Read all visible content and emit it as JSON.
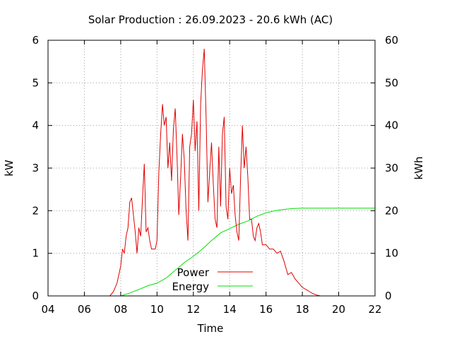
{
  "chart_data": {
    "type": "line",
    "title": "Solar Production : 26.09.2023 - 20.6 kWh (AC)",
    "xlabel": "Time",
    "ylabel": "kW",
    "y2label": "kWh",
    "xlim": [
      4,
      22
    ],
    "ylim": [
      0,
      6
    ],
    "y2lim": [
      0,
      60
    ],
    "x_ticks": [
      "04",
      "06",
      "08",
      "10",
      "12",
      "14",
      "16",
      "18",
      "20",
      "22"
    ],
    "y_ticks": [
      "0",
      "1",
      "2",
      "3",
      "4",
      "5",
      "6"
    ],
    "y2_ticks": [
      "0",
      "10",
      "20",
      "30",
      "40",
      "50",
      "60"
    ],
    "grid": true,
    "legend_position": "bottom-center",
    "colors": {
      "power": "#e00000",
      "energy": "#00e000"
    },
    "series": [
      {
        "name": "Power",
        "axis": "left",
        "x": [
          7.4,
          7.6,
          7.8,
          8.0,
          8.1,
          8.2,
          8.3,
          8.4,
          8.5,
          8.6,
          8.7,
          8.8,
          8.9,
          9.0,
          9.1,
          9.2,
          9.3,
          9.4,
          9.5,
          9.6,
          9.7,
          9.8,
          9.9,
          10.0,
          10.1,
          10.2,
          10.3,
          10.4,
          10.5,
          10.6,
          10.7,
          10.8,
          10.9,
          11.0,
          11.1,
          11.2,
          11.3,
          11.4,
          11.5,
          11.6,
          11.7,
          11.8,
          11.9,
          12.0,
          12.1,
          12.2,
          12.3,
          12.4,
          12.5,
          12.6,
          12.7,
          12.8,
          12.9,
          13.0,
          13.1,
          13.2,
          13.3,
          13.4,
          13.5,
          13.6,
          13.7,
          13.8,
          13.9,
          14.0,
          14.1,
          14.2,
          14.3,
          14.4,
          14.5,
          14.6,
          14.7,
          14.8,
          14.9,
          15.0,
          15.1,
          15.2,
          15.3,
          15.4,
          15.5,
          15.6,
          15.7,
          15.8,
          15.9,
          16.0,
          16.2,
          16.4,
          16.6,
          16.8,
          17.0,
          17.2,
          17.4,
          17.6,
          17.8,
          18.0,
          18.2,
          18.4,
          18.6,
          18.8,
          19.0,
          19.2
        ],
        "values": [
          0.0,
          0.1,
          0.3,
          0.7,
          1.1,
          1.0,
          1.4,
          1.6,
          2.2,
          2.3,
          1.9,
          1.5,
          1.0,
          1.6,
          1.4,
          2.3,
          3.1,
          1.5,
          1.6,
          1.3,
          1.1,
          1.1,
          1.1,
          1.3,
          2.9,
          3.8,
          4.5,
          4.0,
          4.2,
          3.0,
          3.6,
          2.7,
          3.9,
          4.4,
          3.3,
          1.9,
          2.8,
          3.8,
          3.2,
          2.0,
          1.3,
          3.5,
          3.8,
          4.6,
          3.4,
          4.1,
          2.0,
          4.5,
          5.3,
          5.8,
          4.2,
          2.2,
          2.9,
          3.6,
          2.6,
          1.8,
          1.6,
          3.5,
          2.1,
          3.8,
          4.2,
          2.1,
          1.8,
          3.0,
          2.4,
          2.6,
          1.9,
          1.5,
          1.3,
          2.8,
          4.0,
          3.0,
          3.5,
          2.8,
          1.8,
          1.8,
          1.4,
          1.3,
          1.6,
          1.7,
          1.5,
          1.2,
          1.2,
          1.2,
          1.1,
          1.1,
          1.0,
          1.05,
          0.8,
          0.5,
          0.55,
          0.4,
          0.3,
          0.2,
          0.15,
          0.1,
          0.05,
          0.02,
          0.0,
          0.0
        ]
      },
      {
        "name": "Energy",
        "axis": "right",
        "x": [
          8.0,
          8.5,
          9.0,
          9.5,
          10.0,
          10.5,
          11.0,
          11.5,
          12.0,
          12.5,
          13.0,
          13.5,
          14.0,
          14.5,
          15.0,
          15.5,
          16.0,
          16.5,
          17.0,
          17.5,
          18.0,
          18.5,
          19.0,
          20.0,
          21.0,
          22.0
        ],
        "values": [
          0.0,
          0.7,
          1.5,
          2.4,
          3.0,
          4.2,
          6.0,
          7.8,
          9.3,
          11.0,
          13.0,
          14.8,
          15.8,
          16.8,
          17.6,
          18.7,
          19.5,
          20.0,
          20.3,
          20.5,
          20.6,
          20.6,
          20.6,
          20.6,
          20.6,
          20.6
        ]
      }
    ]
  }
}
